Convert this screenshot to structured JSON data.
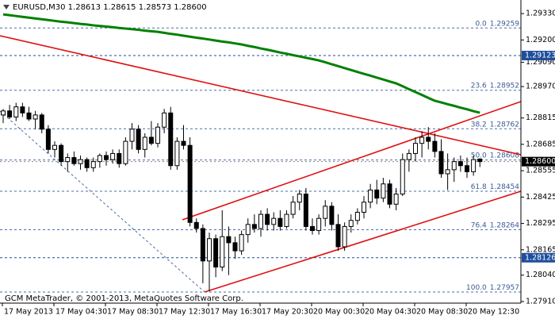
{
  "chart_data": {
    "type": "candlestick",
    "title": "EURUSD,M30  1.28613 1.28615 1.28573 1.28600",
    "footer": "GCM MetaTrader, © 2001-2013, MetaQuotes Software Corp.",
    "categories": [
      "17 May 2013",
      null,
      null,
      null,
      null,
      null,
      null,
      null,
      "17 May 04:30",
      null,
      null,
      null,
      null,
      null,
      null,
      null,
      "17 May 08:30",
      null,
      null,
      null,
      null,
      null,
      null,
      null,
      "17 May 12:30",
      null,
      null,
      null,
      null,
      null,
      null,
      null,
      "17 May 16:30",
      null,
      null,
      null,
      null,
      null,
      null,
      null,
      "17 May 20:30",
      null,
      null,
      null,
      null,
      null,
      null,
      null,
      "20 May 00:30",
      null,
      null,
      null,
      null,
      null,
      null,
      null,
      "20 May 04:30",
      null,
      null,
      null,
      null,
      null,
      null,
      null,
      "20 May 08:30",
      null,
      null,
      null,
      null,
      null,
      null,
      null,
      "20 May 12:30",
      null,
      null
    ],
    "open": [
      1.2883,
      1.2885,
      1.2882,
      1.2887,
      1.2884,
      1.2881,
      1.2883,
      1.2876,
      1.2866,
      1.2868,
      1.286,
      1.2862,
      1.2859,
      1.2861,
      1.2857,
      1.286,
      1.2863,
      1.2861,
      1.2864,
      1.2859,
      1.287,
      1.2876,
      1.2866,
      1.2872,
      1.2869,
      1.2877,
      1.2884,
      1.2858,
      1.287,
      1.2868,
      1.283,
      1.2827,
      1.2811,
      1.2822,
      1.2808,
      1.2823,
      1.282,
      1.2816,
      1.2824,
      1.2829,
      1.2827,
      1.2834,
      1.2829,
      1.2832,
      1.2828,
      1.2834,
      1.284,
      1.2844,
      1.2828,
      1.2826,
      1.2832,
      1.2838,
      1.2829,
      1.2818,
      1.2828,
      1.2831,
      1.2835,
      1.284,
      1.2846,
      1.2842,
      1.2849,
      1.2839,
      1.2844,
      1.2861,
      1.2864,
      1.2869,
      1.2872,
      1.287,
      1.2865,
      1.2854,
      1.2856,
      1.286,
      1.2858,
      1.2855,
      1.28613
    ],
    "high": [
      1.2886,
      1.2888,
      1.2889,
      1.2889,
      1.2887,
      1.2885,
      1.2884,
      1.2878,
      1.287,
      1.2869,
      1.2864,
      1.2865,
      1.2863,
      1.2862,
      1.2862,
      1.2864,
      1.2865,
      1.2866,
      1.2866,
      1.2872,
      1.2879,
      1.2878,
      1.2874,
      1.288,
      1.2879,
      1.2886,
      1.2887,
      1.2872,
      1.2878,
      1.2872,
      1.2832,
      1.2829,
      1.2825,
      1.2824,
      1.2836,
      1.2828,
      1.2823,
      1.2826,
      1.2832,
      1.2834,
      1.2836,
      1.2837,
      1.2835,
      1.2836,
      1.2836,
      1.2843,
      1.2846,
      1.2847,
      1.2832,
      1.2834,
      1.2841,
      1.284,
      1.2834,
      1.283,
      1.2834,
      1.2837,
      1.2843,
      1.2849,
      1.2851,
      1.2852,
      1.2851,
      1.2847,
      1.2864,
      1.2866,
      1.2872,
      1.2875,
      1.2877,
      1.2874,
      1.2871,
      1.2864,
      1.2862,
      1.2863,
      1.2862,
      1.2863,
      1.28615
    ],
    "low": [
      1.2879,
      1.2881,
      1.288,
      1.2882,
      1.288,
      1.2876,
      1.2874,
      1.2864,
      1.2862,
      1.2858,
      1.2855,
      1.2858,
      1.2856,
      1.2855,
      1.2855,
      1.2857,
      1.2858,
      1.2859,
      1.2857,
      1.2858,
      1.2866,
      1.2864,
      1.2862,
      1.2868,
      1.2867,
      1.2874,
      1.2856,
      1.2856,
      1.2866,
      1.2828,
      1.2825,
      1.28,
      1.2796,
      1.2803,
      1.2806,
      1.2804,
      1.2812,
      1.2814,
      1.282,
      1.2825,
      1.2823,
      1.2826,
      1.2826,
      1.2826,
      1.2827,
      1.2832,
      1.2836,
      1.2826,
      1.2824,
      1.2824,
      1.2828,
      1.2826,
      1.2816,
      1.2816,
      1.2825,
      1.2829,
      1.2832,
      1.2837,
      1.2839,
      1.284,
      1.2837,
      1.2836,
      1.2843,
      1.2855,
      1.286,
      1.2862,
      1.2866,
      1.2862,
      1.2852,
      1.2846,
      1.285,
      1.2855,
      1.2852,
      1.2853,
      1.28573
    ],
    "close": [
      1.2885,
      1.2882,
      1.2887,
      1.2884,
      1.2881,
      1.2883,
      1.2876,
      1.2866,
      1.2868,
      1.286,
      1.2862,
      1.2859,
      1.2861,
      1.2857,
      1.286,
      1.2863,
      1.2861,
      1.2864,
      1.2859,
      1.287,
      1.2876,
      1.2866,
      1.2872,
      1.2869,
      1.2877,
      1.2884,
      1.2858,
      1.287,
      1.2868,
      1.283,
      1.2827,
      1.2811,
      1.2822,
      1.2808,
      1.2823,
      1.282,
      1.2816,
      1.2824,
      1.2829,
      1.2827,
      1.2834,
      1.2829,
      1.2832,
      1.2828,
      1.2834,
      1.284,
      1.2844,
      1.2828,
      1.2826,
      1.2832,
      1.2838,
      1.2829,
      1.2818,
      1.2828,
      1.2831,
      1.2835,
      1.284,
      1.2846,
      1.2842,
      1.2849,
      1.2839,
      1.2844,
      1.2861,
      1.2864,
      1.2869,
      1.2872,
      1.287,
      1.2865,
      1.2854,
      1.2856,
      1.286,
      1.2858,
      1.2855,
      1.2861,
      1.286
    ],
    "up_color": "#ffffff",
    "down_color": "#000000",
    "ma": {
      "color": "#008000",
      "values": [
        1.29326,
        1.29322,
        1.29318,
        1.29314,
        1.2931,
        1.29306,
        1.29302,
        1.29298,
        1.29294,
        1.2929,
        1.29287,
        1.29283,
        1.29279,
        1.29276,
        1.29272,
        1.29269,
        1.29266,
        1.29263,
        1.29259,
        1.29256,
        1.29253,
        1.2925,
        1.29246,
        1.29243,
        1.2924,
        1.29235,
        1.2923,
        1.29226,
        1.29221,
        1.29216,
        1.29211,
        1.29207,
        1.29202,
        1.29197,
        1.29192,
        1.29188,
        1.29183,
        1.29178,
        1.29171,
        1.29165,
        1.29158,
        1.29152,
        1.29145,
        1.29138,
        1.29132,
        1.29125,
        1.29119,
        1.29112,
        1.29106,
        1.29099,
        1.2909,
        1.2908,
        1.29071,
        1.29061,
        1.29052,
        1.29042,
        1.29033,
        1.29024,
        1.29014,
        1.29005,
        1.28995,
        1.28986,
        1.28972,
        1.28957,
        1.28943,
        1.28929,
        1.28914,
        1.289,
        1.28892,
        1.28883,
        1.28875,
        1.28866,
        1.28858,
        1.28849,
        1.28841
      ]
    },
    "ylim": [
      1.27902,
      1.29397
    ],
    "yticks": [
      {
        "value": 1.2933,
        "label": "1.29330"
      },
      {
        "value": 1.292,
        "label": "1.29200"
      },
      {
        "value": 1.2909,
        "label": "1.29090"
      },
      {
        "value": 1.2897,
        "label": "1.28970"
      },
      1.28815,
      1.28685,
      1.28555,
      1.28425,
      1.28295,
      1.28165,
      {
        "value": 1.2804,
        "label": "1.28040"
      },
      {
        "value": 1.2791,
        "label": "1.27910"
      }
    ],
    "fib": {
      "color": "#4a6ea8",
      "levels": [
        {
          "level": "0.0",
          "value": 1.29259
        },
        {
          "level": "23.6",
          "value": 1.28952
        },
        {
          "level": "38.2",
          "value": 1.28762
        },
        {
          "level": "50.0",
          "value": 1.28608
        },
        {
          "level": "61.8",
          "value": 1.28454
        },
        {
          "level": "76.4",
          "value": 1.28264
        },
        {
          "level": "100.0",
          "value": 1.27957
        }
      ]
    },
    "hlines": {
      "color": "#1f4e9c",
      "values": [
        1.29123,
        1.28126
      ]
    },
    "current": {
      "value": 1.286,
      "label": "1.28600"
    }
  }
}
